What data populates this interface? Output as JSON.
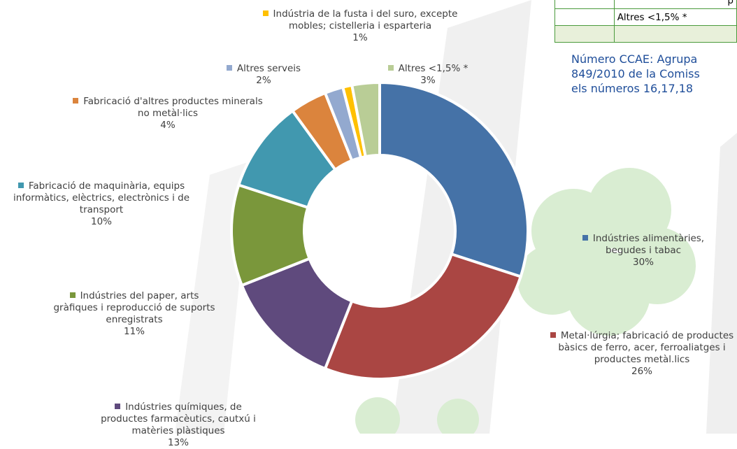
{
  "chart_data": {
    "type": "donut",
    "categories": [
      "Indústries alimentàries, begudes i tabac",
      "Metal·lúrgia; fabricació de productes bàsics de ferro, acer, ferroaliatges i  productes metàl.lics",
      "Indústries químiques, de productes farmacèutics, cautxú i matèries plàstiques",
      "Indústries del paper, arts gràfiques i reproducció de suports enregistrats",
      "Fabricació de maquinària, equips informàtics, elèctrics, electrònics i de transport",
      "Fabricació d'altres productes minerals no metàl·lics",
      "Altres serveis",
      "Indústria de la fusta i del suro, excepte mobles; cistelleria i esparteria",
      "Altres <1,5% *"
    ],
    "values": [
      30,
      26,
      13,
      11,
      10,
      4,
      2,
      1,
      3
    ],
    "value_labels": [
      "30%",
      "26%",
      "13%",
      "11%",
      "10%",
      "4%",
      "2%",
      "1%",
      "3%"
    ],
    "colors": [
      "#4572a7",
      "#aa4643",
      "#5f4a7d",
      "#7a973b",
      "#4198af",
      "#db843d",
      "#93a9cf",
      "#ffc000",
      "#b9cd96"
    ]
  },
  "table": {
    "rows": [
      [
        "",
        "p"
      ],
      [
        "",
        "Altres <1,5% *"
      ],
      [
        "",
        ""
      ]
    ]
  },
  "note": [
    "Número CCAE: Agrupa",
    "849/2010 de la Comiss",
    "els números 16,17,18"
  ]
}
